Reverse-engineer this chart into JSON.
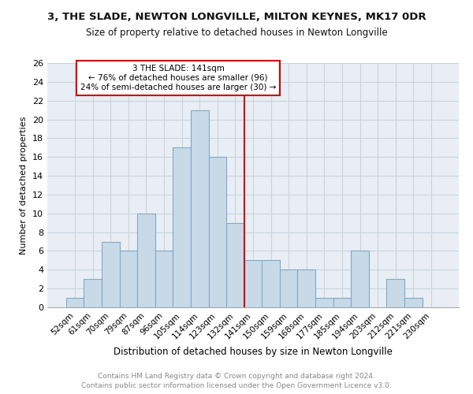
{
  "title": "3, THE SLADE, NEWTON LONGVILLE, MILTON KEYNES, MK17 0DR",
  "subtitle": "Size of property relative to detached houses in Newton Longville",
  "xlabel": "Distribution of detached houses by size in Newton Longville",
  "ylabel": "Number of detached properties",
  "footnote1": "Contains HM Land Registry data © Crown copyright and database right 2024.",
  "footnote2": "Contains public sector information licensed under the Open Government Licence v3.0.",
  "categories": [
    "52sqm",
    "61sqm",
    "70sqm",
    "79sqm",
    "87sqm",
    "96sqm",
    "105sqm",
    "114sqm",
    "123sqm",
    "132sqm",
    "141sqm",
    "150sqm",
    "159sqm",
    "168sqm",
    "177sqm",
    "185sqm",
    "194sqm",
    "203sqm",
    "212sqm",
    "221sqm",
    "230sqm"
  ],
  "values": [
    1,
    3,
    7,
    6,
    10,
    6,
    17,
    21,
    16,
    9,
    5,
    5,
    4,
    4,
    1,
    1,
    6,
    0,
    3,
    1,
    0
  ],
  "bar_color": "#c8d9e8",
  "bar_edge_color": "#7eaac8",
  "vline_color": "#cc0000",
  "annotation_title": "3 THE SLADE: 141sqm",
  "annotation_line1": "← 76% of detached houses are smaller (96)",
  "annotation_line2": "24% of semi-detached houses are larger (30) →",
  "annotation_box_color": "#cc0000",
  "ylim": [
    0,
    26
  ],
  "yticks": [
    0,
    2,
    4,
    6,
    8,
    10,
    12,
    14,
    16,
    18,
    20,
    22,
    24,
    26
  ],
  "grid_color": "#c8d4de",
  "bg_color": "#e8eef4"
}
